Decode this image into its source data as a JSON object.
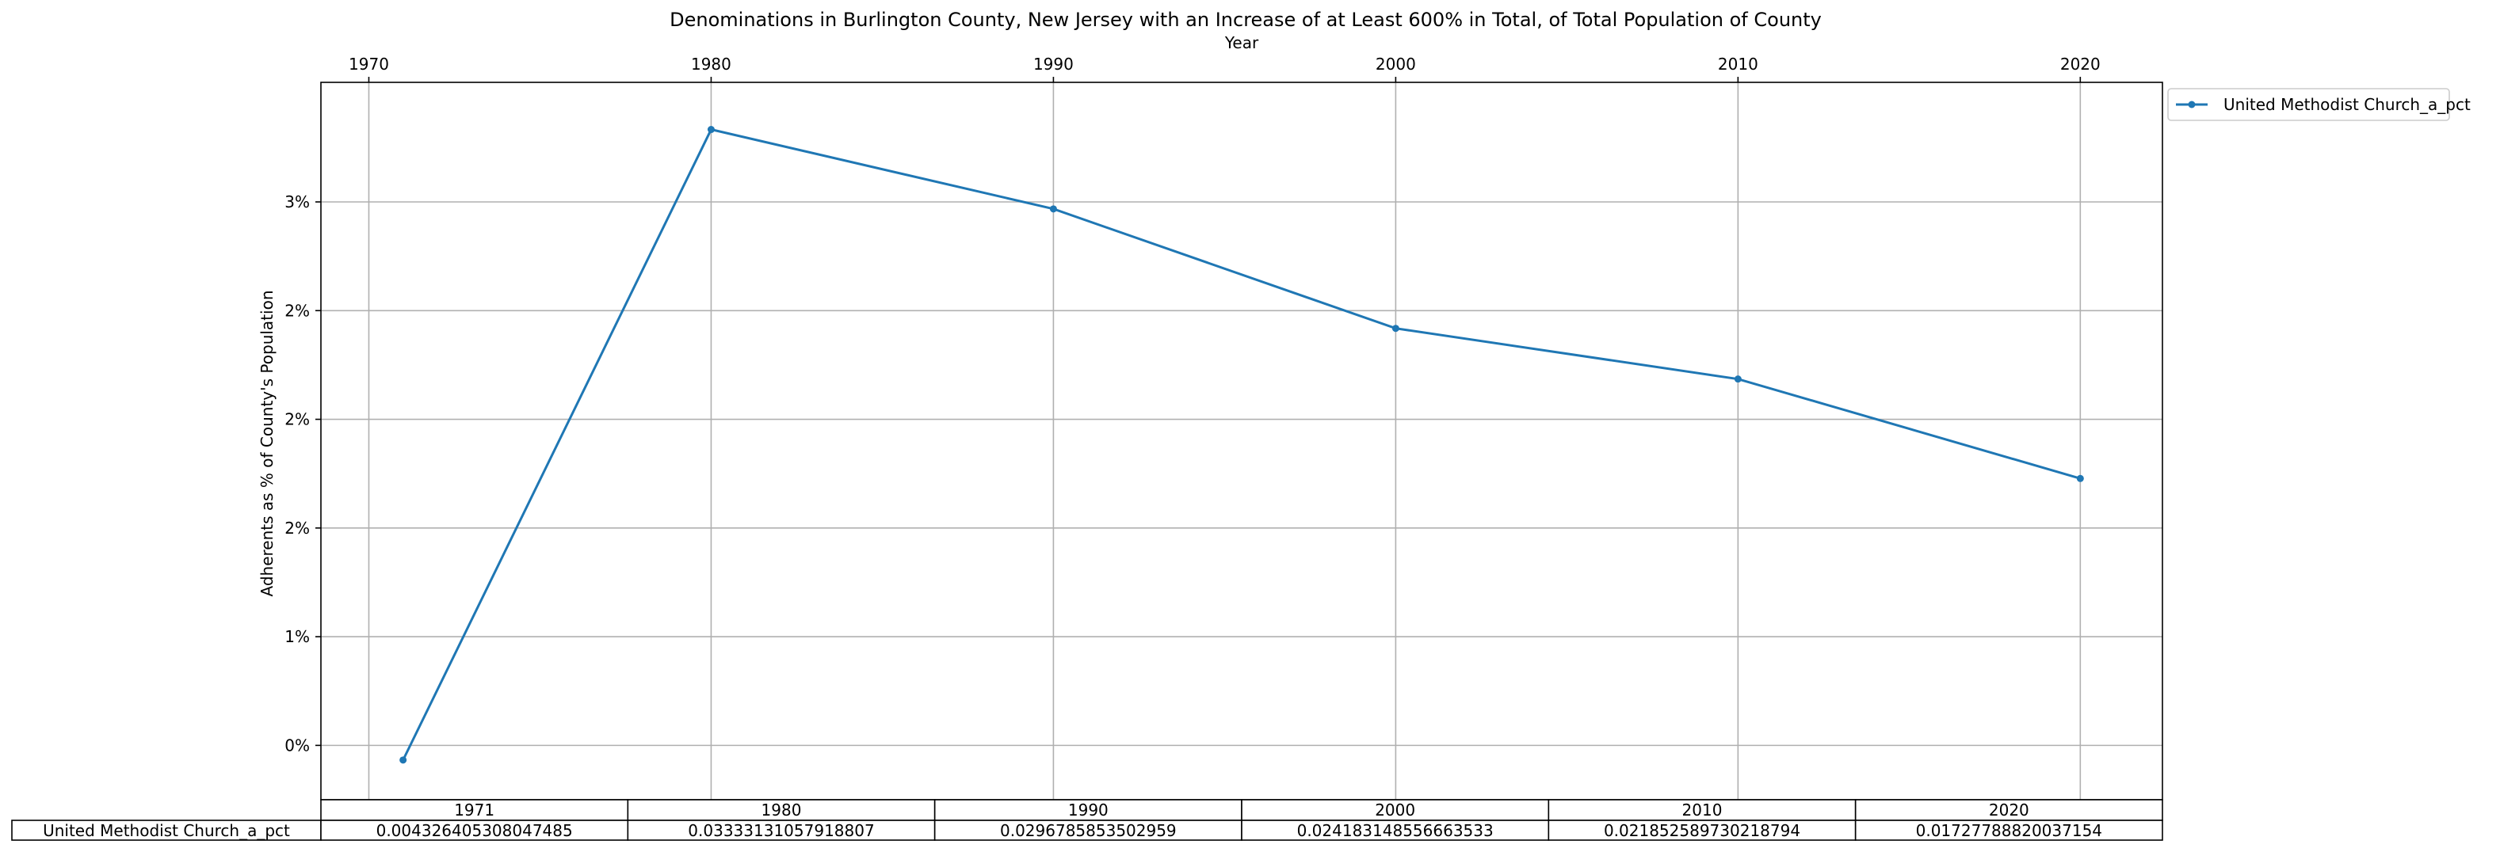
{
  "chart_data": {
    "type": "line",
    "title": "Denominations in Burlington County, New Jersey with an Increase of at Least 600% in Total, of Total Population of County",
    "xlabel": "Year",
    "ylabel": "Adherents as % of County's Population",
    "x": [
      1971,
      1980,
      1990,
      2000,
      2010,
      2020
    ],
    "xticks": [
      1970,
      1980,
      1990,
      2000,
      2010,
      2020
    ],
    "xlim": [
      1968.6,
      2022.4
    ],
    "ylim": [
      0.0025,
      0.0355
    ],
    "yticks": [
      0.005,
      0.01,
      0.015,
      0.02,
      0.025,
      0.03
    ],
    "ytick_labels": [
      "0%",
      "1%",
      "2%",
      "2%",
      "2%",
      "3%"
    ],
    "grid": true,
    "legend_position": "outside-top-right",
    "series": [
      {
        "name": "United Methodist Church_a_pct",
        "color": "#1f77b4",
        "marker": "dot",
        "values": [
          0.004326405308047485,
          0.03333131057918807,
          0.0296785853502959,
          0.024183148556663533,
          0.021852589730218794,
          0.01727788820037154
        ]
      }
    ],
    "table": {
      "col_labels": [
        "1971",
        "1980",
        "1990",
        "2000",
        "2010",
        "2020"
      ],
      "rows": [
        {
          "label": "United Methodist Church_a_pct",
          "cells": [
            "0.004326405308047485",
            "0.03333131057918807",
            "0.0296785853502959",
            "0.024183148556663533",
            "0.021852589730218794",
            "0.01727788820037154"
          ]
        }
      ]
    }
  }
}
